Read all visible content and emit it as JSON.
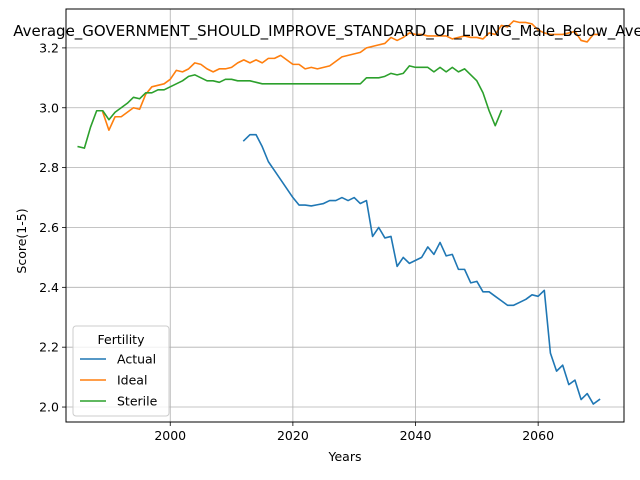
{
  "chart_data": {
    "type": "line",
    "title": "Average_GOVERNMENT_SHOULD_IMPROVE_STANDARD_OF_LIVING_Male_Below_Average",
    "xlabel": "Years",
    "ylabel": "Score(1-5)",
    "xlim": [
      1983,
      2074
    ],
    "ylim": [
      1.95,
      3.33
    ],
    "xticks": [
      2000,
      2020,
      2040,
      2060
    ],
    "yticks": [
      2.0,
      2.2,
      2.4,
      2.6,
      2.8,
      3.0,
      3.2
    ],
    "grid": true,
    "legend": {
      "title": "Fertility",
      "placement": "lower-left"
    },
    "series": [
      {
        "name": "Actual",
        "color": "#1f77b4",
        "x": [
          2012,
          2013,
          2014,
          2015,
          2016,
          2017,
          2018,
          2019,
          2020,
          2021,
          2022,
          2023,
          2024,
          2025,
          2026,
          2027,
          2028,
          2029,
          2030,
          2031,
          2032,
          2033,
          2034,
          2035,
          2036,
          2037,
          2038,
          2039,
          2040,
          2041,
          2042,
          2043,
          2044,
          2045,
          2046,
          2047,
          2048,
          2049,
          2050,
          2051,
          2052,
          2053,
          2054,
          2055,
          2056,
          2057,
          2058,
          2059,
          2060,
          2061,
          2062,
          2063,
          2064,
          2065,
          2066,
          2067,
          2068,
          2069,
          2070
        ],
        "y": [
          2.89,
          2.91,
          2.91,
          2.87,
          2.82,
          2.79,
          2.76,
          2.73,
          2.7,
          2.675,
          2.675,
          2.672,
          2.676,
          2.68,
          2.69,
          2.69,
          2.7,
          2.69,
          2.7,
          2.68,
          2.69,
          2.57,
          2.6,
          2.565,
          2.57,
          2.47,
          2.5,
          2.48,
          2.49,
          2.5,
          2.535,
          2.51,
          2.55,
          2.505,
          2.51,
          2.46,
          2.46,
          2.415,
          2.42,
          2.385,
          2.385,
          2.37,
          2.355,
          2.34,
          2.34,
          2.35,
          2.36,
          2.375,
          2.37,
          2.39,
          2.18,
          2.12,
          2.14,
          2.075,
          2.09,
          2.025,
          2.045,
          2.01,
          2.025
        ]
      },
      {
        "name": "Ideal",
        "color": "#ff7f0e",
        "x": [
          1989,
          1990,
          1991,
          1992,
          1993,
          1994,
          1995,
          1996,
          1997,
          1998,
          1999,
          2000,
          2001,
          2002,
          2003,
          2004,
          2005,
          2006,
          2007,
          2008,
          2009,
          2010,
          2011,
          2012,
          2013,
          2014,
          2015,
          2016,
          2017,
          2018,
          2019,
          2020,
          2021,
          2022,
          2023,
          2024,
          2025,
          2026,
          2027,
          2028,
          2029,
          2030,
          2031,
          2032,
          2033,
          2034,
          2035,
          2036,
          2037,
          2038,
          2039,
          2040,
          2041,
          2042,
          2043,
          2044,
          2045,
          2046,
          2047,
          2048,
          2049,
          2050,
          2051,
          2052,
          2053,
          2054,
          2055,
          2056,
          2057,
          2058,
          2059,
          2060,
          2061,
          2062,
          2063,
          2064,
          2065,
          2066,
          2067,
          2068,
          2069,
          2070
        ],
        "y": [
          2.985,
          2.925,
          2.97,
          2.97,
          2.985,
          3.0,
          2.995,
          3.045,
          3.07,
          3.075,
          3.08,
          3.095,
          3.125,
          3.12,
          3.13,
          3.15,
          3.145,
          3.13,
          3.12,
          3.13,
          3.13,
          3.135,
          3.15,
          3.16,
          3.15,
          3.16,
          3.15,
          3.165,
          3.165,
          3.175,
          3.16,
          3.145,
          3.145,
          3.13,
          3.135,
          3.13,
          3.135,
          3.14,
          3.155,
          3.17,
          3.175,
          3.18,
          3.185,
          3.2,
          3.205,
          3.21,
          3.215,
          3.235,
          3.225,
          3.235,
          3.25,
          3.245,
          3.245,
          3.24,
          3.24,
          3.24,
          3.24,
          3.23,
          3.235,
          3.24,
          3.235,
          3.235,
          3.23,
          3.25,
          3.245,
          3.275,
          3.27,
          3.29,
          3.285,
          3.285,
          3.28,
          3.26,
          3.25,
          3.245,
          3.245,
          3.245,
          3.25,
          3.255,
          3.225,
          3.22,
          3.245,
          3.245
        ]
      },
      {
        "name": "Sterile",
        "color": "#2ca02c",
        "x": [
          1985,
          1986,
          1987,
          1988,
          1989,
          1990,
          1991,
          1992,
          1993,
          1994,
          1995,
          1996,
          1997,
          1998,
          1999,
          2000,
          2001,
          2002,
          2003,
          2004,
          2005,
          2006,
          2007,
          2008,
          2009,
          2010,
          2011,
          2012,
          2013,
          2014,
          2015,
          2016,
          2017,
          2018,
          2019,
          2020,
          2021,
          2022,
          2023,
          2024,
          2025,
          2026,
          2027,
          2028,
          2029,
          2030,
          2031,
          2032,
          2033,
          2034,
          2035,
          2036,
          2037,
          2038,
          2039,
          2040,
          2041,
          2042,
          2043,
          2044,
          2045,
          2046,
          2047,
          2048,
          2049,
          2050,
          2051,
          2052,
          2053,
          2054
        ],
        "y": [
          2.87,
          2.865,
          2.935,
          2.99,
          2.99,
          2.96,
          2.985,
          3.0,
          3.015,
          3.035,
          3.03,
          3.05,
          3.05,
          3.06,
          3.06,
          3.07,
          3.08,
          3.09,
          3.105,
          3.11,
          3.1,
          3.09,
          3.09,
          3.085,
          3.095,
          3.095,
          3.09,
          3.09,
          3.09,
          3.085,
          3.08,
          3.08,
          3.08,
          3.08,
          3.08,
          3.08,
          3.08,
          3.08,
          3.08,
          3.08,
          3.08,
          3.08,
          3.08,
          3.08,
          3.08,
          3.08,
          3.08,
          3.1,
          3.1,
          3.1,
          3.105,
          3.115,
          3.11,
          3.115,
          3.14,
          3.135,
          3.135,
          3.135,
          3.12,
          3.135,
          3.12,
          3.135,
          3.12,
          3.13,
          3.11,
          3.09,
          3.05,
          2.99,
          2.94,
          2.99
        ]
      }
    ]
  }
}
